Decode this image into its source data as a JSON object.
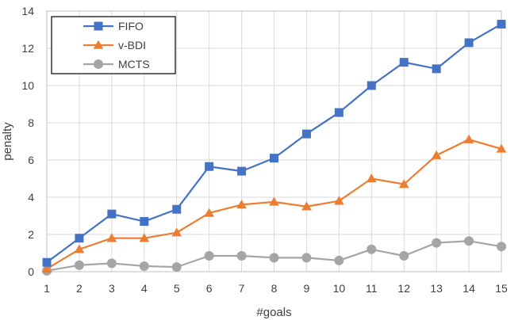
{
  "chart_data": {
    "type": "line",
    "title": "",
    "xlabel": "#goals",
    "ylabel": "penalty",
    "x": [
      1,
      2,
      3,
      4,
      5,
      6,
      7,
      8,
      9,
      10,
      11,
      12,
      13,
      14,
      15
    ],
    "xlim": [
      1,
      15
    ],
    "ylim": [
      0,
      14
    ],
    "yticks": [
      0,
      2,
      4,
      6,
      8,
      10,
      12,
      14
    ],
    "grid": true,
    "legend_position": "top-left",
    "series": [
      {
        "name": "FIFO",
        "color": "#4472C4",
        "marker": "square",
        "values": [
          0.5,
          1.8,
          3.1,
          2.7,
          3.35,
          5.65,
          5.4,
          6.1,
          7.4,
          8.55,
          10.0,
          11.25,
          10.9,
          12.3,
          13.3
        ]
      },
      {
        "name": "v-BDI",
        "color": "#ED7D31",
        "marker": "triangle",
        "values": [
          0.15,
          1.2,
          1.8,
          1.8,
          2.1,
          3.15,
          3.6,
          3.75,
          3.5,
          3.8,
          5.0,
          4.7,
          6.25,
          7.1,
          6.6
        ]
      },
      {
        "name": "MCTS",
        "color": "#A5A5A5",
        "marker": "circle",
        "values": [
          0.05,
          0.35,
          0.45,
          0.3,
          0.25,
          0.85,
          0.85,
          0.75,
          0.75,
          0.6,
          1.2,
          0.85,
          1.55,
          1.65,
          1.35
        ]
      }
    ]
  }
}
